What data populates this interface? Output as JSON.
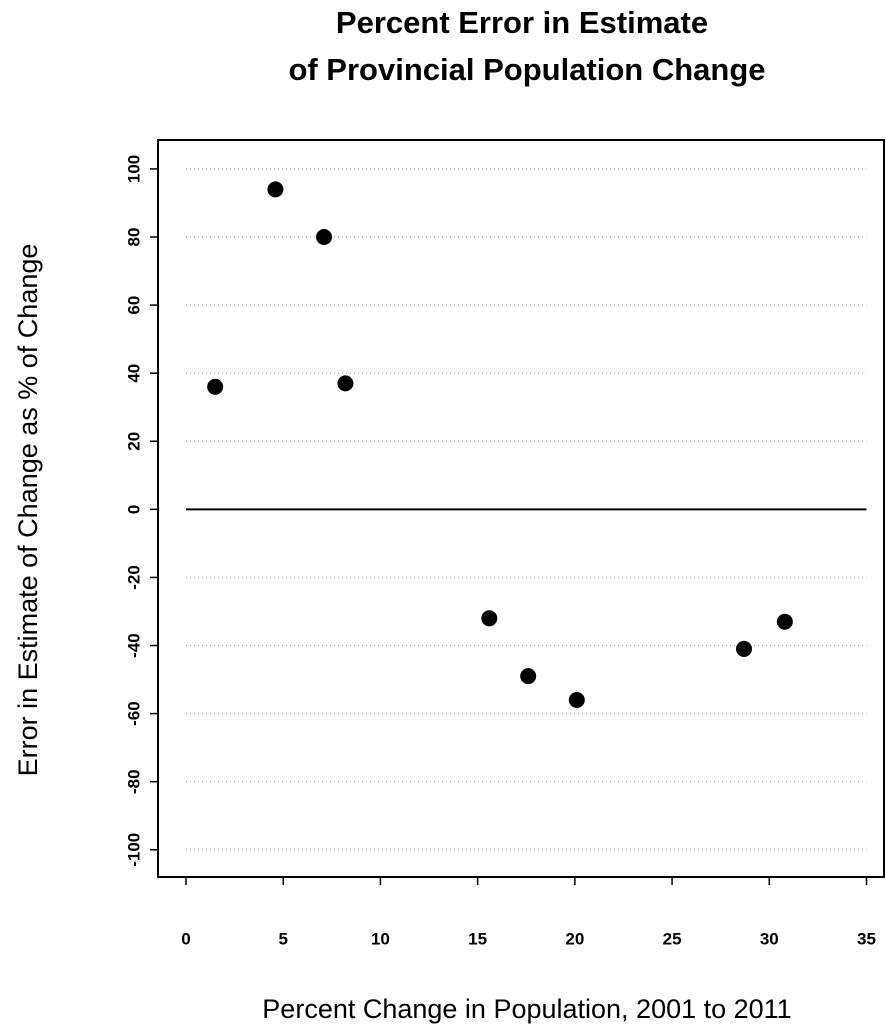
{
  "chart_data": {
    "type": "scatter",
    "title": [
      "Percent Error in Estimate",
      "of Provincial Population Change"
    ],
    "x_label": "Percent Change in Population, 2001 to 2011",
    "y_label": "Error in Estimate of Change as % of Change",
    "x": [
      1.5,
      4.6,
      7.1,
      8.2,
      15.6,
      17.6,
      20.1,
      28.7,
      30.8
    ],
    "y": [
      36,
      94,
      80,
      37,
      -32,
      -49,
      -56,
      -41,
      -33
    ],
    "color": "#000000",
    "xlim": [
      -1.44,
      35.9
    ],
    "ylim": [
      -108,
      108.5
    ],
    "xticks": [
      0,
      5,
      10,
      15,
      20,
      25,
      30,
      35
    ],
    "yticks": [
      -100,
      -80,
      -60,
      -40,
      -20,
      0,
      20,
      40,
      60,
      80,
      100
    ],
    "grid": true,
    "hline": 0
  }
}
